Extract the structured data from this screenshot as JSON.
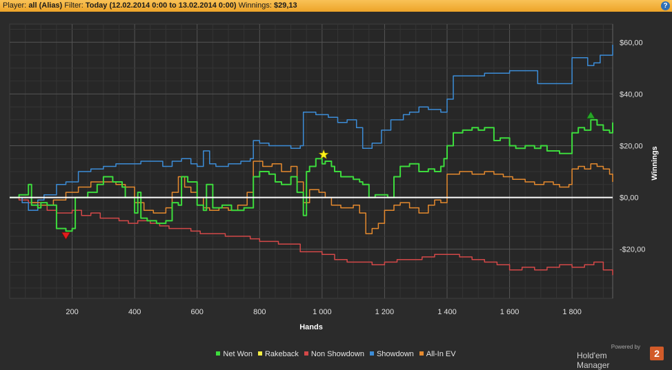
{
  "header": {
    "player_label": "Player:",
    "player_value": "all (Alias)",
    "filter_label": "Filter:",
    "filter_value": "Today (12.02.2014 0:00 to 13.02.2014 0:00)",
    "winnings_label": "Winnings:",
    "winnings_value": "$29,13",
    "help_glyph": "?"
  },
  "chart_data": {
    "type": "line",
    "xlabel": "Hands",
    "ylabel": "Winnings",
    "xlim": [
      0,
      1930
    ],
    "ylim": [
      -39,
      67
    ],
    "x_ticks": [
      {
        "v": 200,
        "label": "200"
      },
      {
        "v": 400,
        "label": "400"
      },
      {
        "v": 600,
        "label": "600"
      },
      {
        "v": 800,
        "label": "800"
      },
      {
        "v": 1000,
        "label": "1 000"
      },
      {
        "v": 1200,
        "label": "1 200"
      },
      {
        "v": 1400,
        "label": "1 400"
      },
      {
        "v": 1600,
        "label": "1 600"
      },
      {
        "v": 1800,
        "label": "1 800"
      }
    ],
    "y_ticks": [
      {
        "v": 60,
        "label": "$60,00"
      },
      {
        "v": 40,
        "label": "$40,00"
      },
      {
        "v": 20,
        "label": "$20,00"
      },
      {
        "v": 0,
        "label": "$0,00"
      },
      {
        "v": -20,
        "label": "-$20,00"
      }
    ],
    "grid": true,
    "legend_position": "bottom",
    "series": [
      {
        "name": "Net Won",
        "color": "#3ddc3d",
        "points": [
          [
            0,
            0
          ],
          [
            30,
            1
          ],
          [
            60,
            5
          ],
          [
            70,
            -3
          ],
          [
            90,
            -4
          ],
          [
            100,
            -2
          ],
          [
            120,
            -3
          ],
          [
            150,
            -12
          ],
          [
            180,
            -13
          ],
          [
            200,
            -12
          ],
          [
            210,
            0
          ],
          [
            250,
            2
          ],
          [
            280,
            5
          ],
          [
            300,
            8
          ],
          [
            330,
            6
          ],
          [
            360,
            4
          ],
          [
            370,
            0
          ],
          [
            400,
            -6
          ],
          [
            410,
            2
          ],
          [
            420,
            -8
          ],
          [
            440,
            -9
          ],
          [
            470,
            -10
          ],
          [
            500,
            -9
          ],
          [
            520,
            -2
          ],
          [
            540,
            -3
          ],
          [
            550,
            8
          ],
          [
            570,
            6
          ],
          [
            600,
            -3
          ],
          [
            620,
            -5
          ],
          [
            630,
            5
          ],
          [
            650,
            -4
          ],
          [
            680,
            -3
          ],
          [
            710,
            -5
          ],
          [
            750,
            -4
          ],
          [
            780,
            8
          ],
          [
            800,
            10
          ],
          [
            830,
            9
          ],
          [
            850,
            6
          ],
          [
            870,
            5
          ],
          [
            900,
            8
          ],
          [
            920,
            2
          ],
          [
            940,
            -7
          ],
          [
            950,
            10
          ],
          [
            960,
            12
          ],
          [
            980,
            15
          ],
          [
            1000,
            13
          ],
          [
            1010,
            14
          ],
          [
            1030,
            12
          ],
          [
            1040,
            10
          ],
          [
            1060,
            8
          ],
          [
            1080,
            8
          ],
          [
            1100,
            7
          ],
          [
            1120,
            6
          ],
          [
            1130,
            5
          ],
          [
            1150,
            0
          ],
          [
            1170,
            1
          ],
          [
            1200,
            1
          ],
          [
            1210,
            0
          ],
          [
            1230,
            8
          ],
          [
            1250,
            12
          ],
          [
            1280,
            13
          ],
          [
            1310,
            10
          ],
          [
            1340,
            11
          ],
          [
            1360,
            10
          ],
          [
            1380,
            12
          ],
          [
            1390,
            15
          ],
          [
            1400,
            20
          ],
          [
            1420,
            25
          ],
          [
            1450,
            26
          ],
          [
            1480,
            27
          ],
          [
            1500,
            26
          ],
          [
            1520,
            27
          ],
          [
            1550,
            22
          ],
          [
            1570,
            23
          ],
          [
            1600,
            20
          ],
          [
            1620,
            19
          ],
          [
            1650,
            20
          ],
          [
            1680,
            19
          ],
          [
            1700,
            20
          ],
          [
            1720,
            18
          ],
          [
            1740,
            18
          ],
          [
            1760,
            17
          ],
          [
            1780,
            17
          ],
          [
            1800,
            25
          ],
          [
            1820,
            27
          ],
          [
            1840,
            26
          ],
          [
            1860,
            30
          ],
          [
            1880,
            28
          ],
          [
            1900,
            26
          ],
          [
            1920,
            25
          ],
          [
            1930,
            29
          ]
        ]
      },
      {
        "name": "Rakeback",
        "color": "#f4ee43",
        "points": [
          [
            0,
            0
          ],
          [
            1930,
            0
          ]
        ]
      },
      {
        "name": "Non Showdown",
        "color": "#d44848",
        "points": [
          [
            0,
            0
          ],
          [
            30,
            -1
          ],
          [
            60,
            -2
          ],
          [
            90,
            -3
          ],
          [
            120,
            -5
          ],
          [
            150,
            -6
          ],
          [
            200,
            -5
          ],
          [
            230,
            -7
          ],
          [
            260,
            -6
          ],
          [
            290,
            -8
          ],
          [
            320,
            -8
          ],
          [
            350,
            -9
          ],
          [
            380,
            -10
          ],
          [
            410,
            -9
          ],
          [
            450,
            -10
          ],
          [
            480,
            -11
          ],
          [
            510,
            -12
          ],
          [
            540,
            -12
          ],
          [
            580,
            -13
          ],
          [
            610,
            -14
          ],
          [
            650,
            -14
          ],
          [
            690,
            -15
          ],
          [
            730,
            -15
          ],
          [
            770,
            -16
          ],
          [
            800,
            -17
          ],
          [
            830,
            -17
          ],
          [
            860,
            -18
          ],
          [
            900,
            -18
          ],
          [
            930,
            -21
          ],
          [
            970,
            -21
          ],
          [
            1000,
            -22
          ],
          [
            1040,
            -24
          ],
          [
            1080,
            -25
          ],
          [
            1120,
            -25
          ],
          [
            1160,
            -26
          ],
          [
            1200,
            -25
          ],
          [
            1240,
            -24
          ],
          [
            1280,
            -24
          ],
          [
            1320,
            -23
          ],
          [
            1360,
            -22
          ],
          [
            1400,
            -22
          ],
          [
            1440,
            -23
          ],
          [
            1480,
            -24
          ],
          [
            1520,
            -25
          ],
          [
            1560,
            -26
          ],
          [
            1600,
            -28
          ],
          [
            1640,
            -27
          ],
          [
            1680,
            -28
          ],
          [
            1720,
            -27
          ],
          [
            1760,
            -26
          ],
          [
            1800,
            -27
          ],
          [
            1840,
            -26
          ],
          [
            1870,
            -25
          ],
          [
            1900,
            -28
          ],
          [
            1930,
            -30
          ]
        ]
      },
      {
        "name": "Showdown",
        "color": "#3c8dd8",
        "points": [
          [
            0,
            0
          ],
          [
            40,
            -2
          ],
          [
            60,
            -5
          ],
          [
            90,
            -1
          ],
          [
            110,
            1
          ],
          [
            150,
            5
          ],
          [
            180,
            6
          ],
          [
            220,
            10
          ],
          [
            260,
            11
          ],
          [
            300,
            12
          ],
          [
            340,
            13
          ],
          [
            380,
            13
          ],
          [
            420,
            14
          ],
          [
            460,
            14
          ],
          [
            490,
            12
          ],
          [
            520,
            14
          ],
          [
            550,
            15
          ],
          [
            580,
            13
          ],
          [
            600,
            12
          ],
          [
            620,
            18
          ],
          [
            640,
            13
          ],
          [
            660,
            12
          ],
          [
            700,
            13
          ],
          [
            740,
            14
          ],
          [
            770,
            15
          ],
          [
            780,
            22
          ],
          [
            800,
            21
          ],
          [
            830,
            20
          ],
          [
            860,
            20
          ],
          [
            900,
            19
          ],
          [
            930,
            20
          ],
          [
            940,
            33
          ],
          [
            980,
            32
          ],
          [
            1020,
            31
          ],
          [
            1050,
            29
          ],
          [
            1080,
            30
          ],
          [
            1110,
            27
          ],
          [
            1130,
            19
          ],
          [
            1160,
            21
          ],
          [
            1190,
            26
          ],
          [
            1220,
            30
          ],
          [
            1260,
            32
          ],
          [
            1280,
            33
          ],
          [
            1310,
            35
          ],
          [
            1340,
            34
          ],
          [
            1380,
            33
          ],
          [
            1400,
            38
          ],
          [
            1420,
            47
          ],
          [
            1480,
            47
          ],
          [
            1520,
            48
          ],
          [
            1560,
            48
          ],
          [
            1600,
            49
          ],
          [
            1640,
            49
          ],
          [
            1680,
            49
          ],
          [
            1690,
            44
          ],
          [
            1740,
            44
          ],
          [
            1770,
            44
          ],
          [
            1790,
            44
          ],
          [
            1800,
            54
          ],
          [
            1840,
            54
          ],
          [
            1850,
            51
          ],
          [
            1870,
            52
          ],
          [
            1890,
            55
          ],
          [
            1920,
            55
          ],
          [
            1930,
            59
          ]
        ]
      },
      {
        "name": "All-In EV",
        "color": "#e68a2e",
        "points": [
          [
            0,
            0
          ],
          [
            40,
            0
          ],
          [
            70,
            -2
          ],
          [
            100,
            -3
          ],
          [
            140,
            -1
          ],
          [
            180,
            2
          ],
          [
            220,
            4
          ],
          [
            260,
            6
          ],
          [
            300,
            6
          ],
          [
            340,
            5
          ],
          [
            370,
            4
          ],
          [
            400,
            -2
          ],
          [
            430,
            -5
          ],
          [
            460,
            -6
          ],
          [
            500,
            -4
          ],
          [
            520,
            2
          ],
          [
            540,
            8
          ],
          [
            560,
            4
          ],
          [
            580,
            2
          ],
          [
            600,
            0
          ],
          [
            620,
            -4
          ],
          [
            640,
            -5
          ],
          [
            670,
            -4
          ],
          [
            700,
            -5
          ],
          [
            730,
            -3
          ],
          [
            760,
            2
          ],
          [
            780,
            14
          ],
          [
            810,
            12
          ],
          [
            840,
            13
          ],
          [
            870,
            10
          ],
          [
            900,
            12
          ],
          [
            920,
            6
          ],
          [
            940,
            -2
          ],
          [
            960,
            3
          ],
          [
            990,
            2
          ],
          [
            1010,
            0
          ],
          [
            1030,
            -3
          ],
          [
            1060,
            -4
          ],
          [
            1080,
            -4
          ],
          [
            1100,
            -3
          ],
          [
            1120,
            -6
          ],
          [
            1140,
            -14
          ],
          [
            1160,
            -12
          ],
          [
            1180,
            -10
          ],
          [
            1200,
            -5
          ],
          [
            1230,
            -3
          ],
          [
            1250,
            -2
          ],
          [
            1280,
            -4
          ],
          [
            1310,
            -6
          ],
          [
            1340,
            -3
          ],
          [
            1360,
            -1
          ],
          [
            1380,
            -2
          ],
          [
            1400,
            9
          ],
          [
            1440,
            10
          ],
          [
            1480,
            9
          ],
          [
            1520,
            10
          ],
          [
            1550,
            9
          ],
          [
            1580,
            8
          ],
          [
            1610,
            7
          ],
          [
            1650,
            6
          ],
          [
            1680,
            5
          ],
          [
            1710,
            6
          ],
          [
            1740,
            5
          ],
          [
            1760,
            4
          ],
          [
            1790,
            5
          ],
          [
            1800,
            11
          ],
          [
            1820,
            12
          ],
          [
            1840,
            11
          ],
          [
            1860,
            13
          ],
          [
            1880,
            12
          ],
          [
            1900,
            11
          ],
          [
            1920,
            9
          ],
          [
            1930,
            6
          ]
        ]
      }
    ],
    "markers": [
      {
        "type": "min",
        "shape": "triangle-down",
        "color": "#e01e1e",
        "x": 180,
        "y": -13
      },
      {
        "type": "max",
        "shape": "triangle-up",
        "color": "#27a427",
        "x": 1860,
        "y": 30
      },
      {
        "type": "best",
        "shape": "star",
        "color": "#fff21a",
        "x": 1005,
        "y": 16
      }
    ]
  },
  "legend": [
    {
      "name": "Net Won",
      "color": "#3ddc3d"
    },
    {
      "name": "Rakeback",
      "color": "#f4ee43"
    },
    {
      "name": "Non Showdown",
      "color": "#d44848"
    },
    {
      "name": "Showdown",
      "color": "#3c8dd8"
    },
    {
      "name": "All-In EV",
      "color": "#e68a2e"
    }
  ],
  "branding": {
    "powered_by": "Powered by",
    "name": "Hold'em Manager",
    "logo_glyph": "2"
  }
}
